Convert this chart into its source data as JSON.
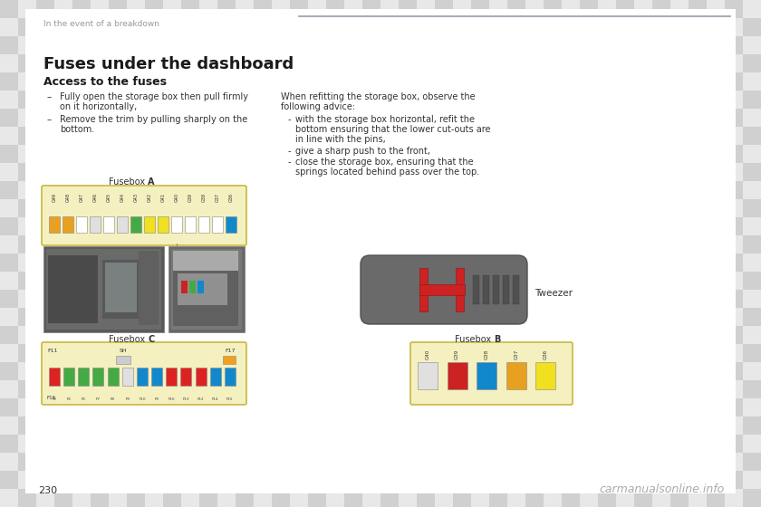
{
  "bg_checker_light": "#e8e8e8",
  "bg_checker_dark": "#d0d0d0",
  "page_bg": "#ffffff",
  "header_text": "In the event of a breakdown",
  "header_line_color": "#9999aa",
  "title": "Fuses under the dashboard",
  "subtitle": "Access to the fuses",
  "bullet_sym": "–",
  "bullet1_line1": "Fully open the storage box then pull firmly",
  "bullet1_line2": "on it horizontally,",
  "bullet2_line1": "Remove the trim by pulling sharply on the",
  "bullet2_line2": "bottom.",
  "right_para1": "When refitting the storage box, observe the",
  "right_para2": "following advice:",
  "dash1a": "with the storage box horizontal, refit the",
  "dash1b": "bottom ensuring that the lower cut-outs are",
  "dash1c": "in line with the pins,",
  "dash2": "give a sharp push to the front,",
  "dash3a": "close the storage box, ensuring that the",
  "dash3b": "springs located behind pass over the top.",
  "fusebox_a_label": "Fusebox ",
  "fusebox_a_bold": "A",
  "fusebox_b_label": "Fusebox ",
  "fusebox_b_bold": "B",
  "fusebox_c_label": "Fusebox ",
  "fusebox_c_bold": "C",
  "tweezer_label": "Tweezer",
  "page_number": "230",
  "watermark": "carmanualsonline.info",
  "fuse_box_bg": "#f5f0c0",
  "fuse_box_border": "#c8b840",
  "fusebox_a_fuse_colors": [
    "#e8a020",
    "#e8a020",
    "#ffffff",
    "#e0e0e0",
    "#ffffff",
    "#e0e0e0",
    "#44aa44",
    "#f0e020",
    "#f0e020",
    "#ffffff",
    "#ffffff",
    "#ffffff",
    "#ffffff",
    "#1188cc"
  ],
  "fusebox_a_labels": [
    "G49",
    "G48",
    "G47",
    "G46",
    "G45",
    "G44",
    "G43",
    "G42",
    "G41",
    "G40",
    "G39",
    "G38",
    "G37",
    "G36"
  ],
  "fusebox_b_fuse_colors": [
    "#e0e0e0",
    "#cc2222",
    "#1188cc",
    "#e8a020",
    "#f0e020"
  ],
  "fusebox_b_labels": [
    "G40",
    "G39",
    "G38",
    "G37",
    "G36"
  ],
  "fusebox_c_top_colors": [
    "#dd2222",
    "#44aa44",
    "#44aa44",
    "#44aa44",
    "#44aa44",
    "#e0e0e0",
    "#1188cc",
    "#1188cc",
    "#dd2222",
    "#dd2222",
    "#dd2222",
    "#1188cc",
    "#1188cc"
  ],
  "fusebox_c_bot_colors": [
    "#dd2222",
    "#44aa44",
    "#44aa44",
    "#44aa44",
    "#44aa44",
    "#e0e0e0",
    "#1188cc",
    "#1188cc",
    "#dd2222",
    "#dd2222",
    "#dd2222",
    "#1188cc",
    "#1188cc"
  ],
  "text_color": "#333333",
  "light_text_color": "#999999",
  "tweezer_body_color": "#707070",
  "tweezer_red_color": "#cc2222",
  "photo1_bg": "#686868",
  "photo2_bg": "#787878"
}
